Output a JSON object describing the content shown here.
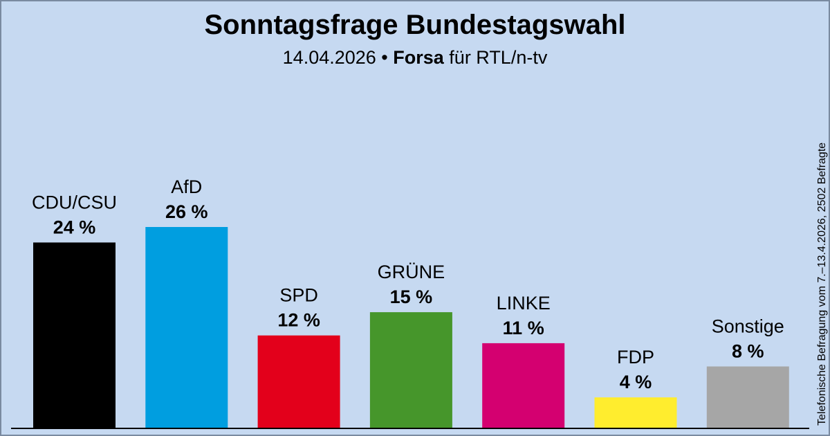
{
  "header": {
    "title": "Sonntagsfrage Bundestagswahl",
    "date": "14.04.2026",
    "separator": " • ",
    "pollster": "Forsa",
    "client": " für RTL/n-tv"
  },
  "note": "Telefonische Befragung vom 7.–13.4.2026, 2502 Befragte",
  "chart_data": {
    "type": "bar",
    "title": "Sonntagsfrage Bundestagswahl",
    "categories": [
      "CDU/CSU",
      "AfD",
      "SPD",
      "GRÜNE",
      "LINKE",
      "FDP",
      "Sonstige"
    ],
    "values": [
      24,
      26,
      12,
      15,
      11,
      4,
      8
    ],
    "value_labels": [
      "24 %",
      "26 %",
      "12 %",
      "15 %",
      "11 %",
      "4 %",
      "8 %"
    ],
    "colors": [
      "#000000",
      "#009ee0",
      "#e3001b",
      "#46962b",
      "#d40070",
      "#ffed2e",
      "#a6a6a6"
    ],
    "unit": "%",
    "ylim": [
      0,
      26
    ],
    "grid": false,
    "legend": "none"
  }
}
